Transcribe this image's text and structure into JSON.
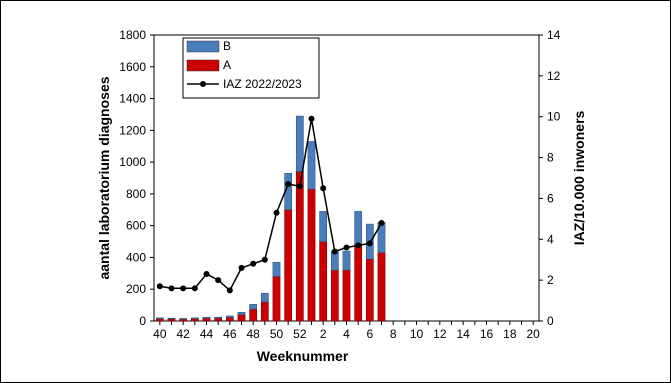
{
  "chart_data": {
    "type": "bar",
    "categories": [
      40,
      41,
      42,
      43,
      44,
      45,
      46,
      47,
      48,
      49,
      50,
      51,
      52,
      1,
      2,
      3,
      4,
      5,
      6,
      7
    ],
    "x_ticks_all": [
      40,
      41,
      42,
      43,
      44,
      45,
      46,
      47,
      48,
      49,
      50,
      51,
      52,
      1,
      2,
      3,
      4,
      5,
      6,
      7,
      8,
      9,
      10,
      11,
      12,
      13,
      14,
      15,
      16,
      17,
      18,
      19,
      20
    ],
    "x_tick_labels": [
      "40",
      "42",
      "44",
      "46",
      "48",
      "50",
      "52",
      "2",
      "4",
      "6",
      "8",
      "10",
      "12",
      "14",
      "16",
      "18",
      "20"
    ],
    "xlabel": "Weeknummer",
    "ylabel": "aantal laboratorium diagnoses",
    "y2label": "IAZ/10.000 inwoners",
    "ylim": [
      0,
      1800
    ],
    "yticks": [
      0,
      200,
      400,
      600,
      800,
      1000,
      1200,
      1400,
      1600,
      1800
    ],
    "y2lim": [
      0,
      14
    ],
    "y2ticks": [
      0,
      2,
      4,
      6,
      8,
      10,
      12,
      14
    ],
    "stacked": true,
    "series": [
      {
        "name": "A",
        "axis": "left",
        "color": "#cc0000",
        "values": [
          15,
          14,
          12,
          15,
          18,
          18,
          22,
          40,
          75,
          120,
          280,
          700,
          940,
          830,
          500,
          320,
          320,
          470,
          390,
          430
        ]
      },
      {
        "name": "B",
        "axis": "left",
        "color": "#4a7ebb",
        "values": [
          5,
          4,
          4,
          5,
          6,
          6,
          10,
          15,
          30,
          55,
          90,
          230,
          350,
          300,
          190,
          120,
          120,
          220,
          220,
          190
        ]
      },
      {
        "name": "IAZ 2022/2023",
        "type": "line",
        "axis": "right",
        "color": "#000000",
        "values": [
          1.7,
          1.6,
          1.6,
          1.6,
          2.3,
          2.0,
          1.5,
          2.6,
          2.8,
          3.0,
          5.3,
          6.7,
          6.6,
          9.9,
          6.5,
          3.4,
          3.6,
          3.7,
          3.8,
          4.8
        ]
      }
    ],
    "legend": {
      "position": "top-left",
      "entries": [
        "B",
        "A",
        "IAZ 2022/2023"
      ]
    },
    "grid": false
  }
}
